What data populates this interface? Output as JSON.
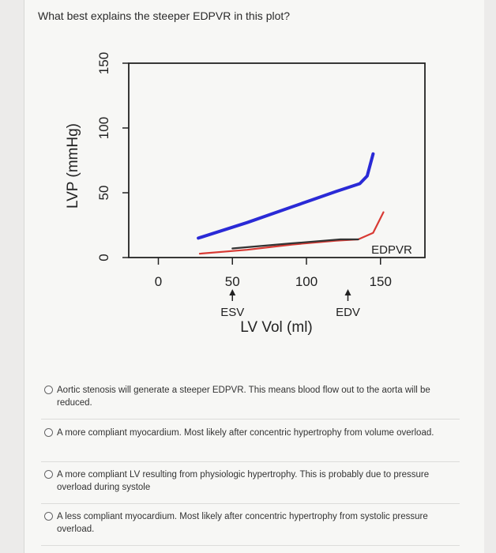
{
  "question": "What best explains the steeper EDPVR in this plot?",
  "chart_data": {
    "type": "line",
    "ylabel": "LVP (mmHg)",
    "xlabel": "LV Vol (ml)",
    "y_ticks": [
      "150",
      "100",
      "50",
      "0"
    ],
    "x_ticks": [
      "0",
      "50",
      "100",
      "150"
    ],
    "markers": [
      {
        "label": "ESV",
        "x": 50
      },
      {
        "label": "EDV",
        "x": 128
      }
    ],
    "curve_label": "EDPVR",
    "series": [
      {
        "color": "#2a2ad6",
        "points": [
          [
            27,
            15
          ],
          [
            60,
            27
          ],
          [
            90,
            39
          ],
          [
            120,
            51
          ],
          [
            136,
            57
          ],
          [
            141,
            63
          ],
          [
            145,
            80
          ]
        ]
      },
      {
        "color": "#d83a34",
        "points": [
          [
            28,
            3
          ],
          [
            60,
            6
          ],
          [
            90,
            10
          ],
          [
            120,
            13
          ],
          [
            135,
            14
          ],
          [
            145,
            19
          ],
          [
            152,
            35
          ]
        ]
      },
      {
        "color": "#333333",
        "points": [
          [
            50,
            7
          ],
          [
            90,
            11
          ],
          [
            123,
            14
          ],
          [
            135,
            14
          ]
        ]
      }
    ],
    "xlim": [
      -20,
      180
    ],
    "ylim": [
      0,
      150
    ]
  },
  "options": [
    {
      "text": "Aortic stenosis will generate a steeper EDPVR. This means blood flow out to the aorta will be reduced."
    },
    {
      "text": "A more compliant myocardium. Most likely after concentric hypertrophy from volume overload."
    },
    {
      "text": "A more compliant LV resulting from physiologic hypertrophy. This is probably due to pressure overload during systole"
    },
    {
      "text": "A less compliant myocardium. Most likely after concentric hypertrophy from systolic pressure overload."
    }
  ]
}
